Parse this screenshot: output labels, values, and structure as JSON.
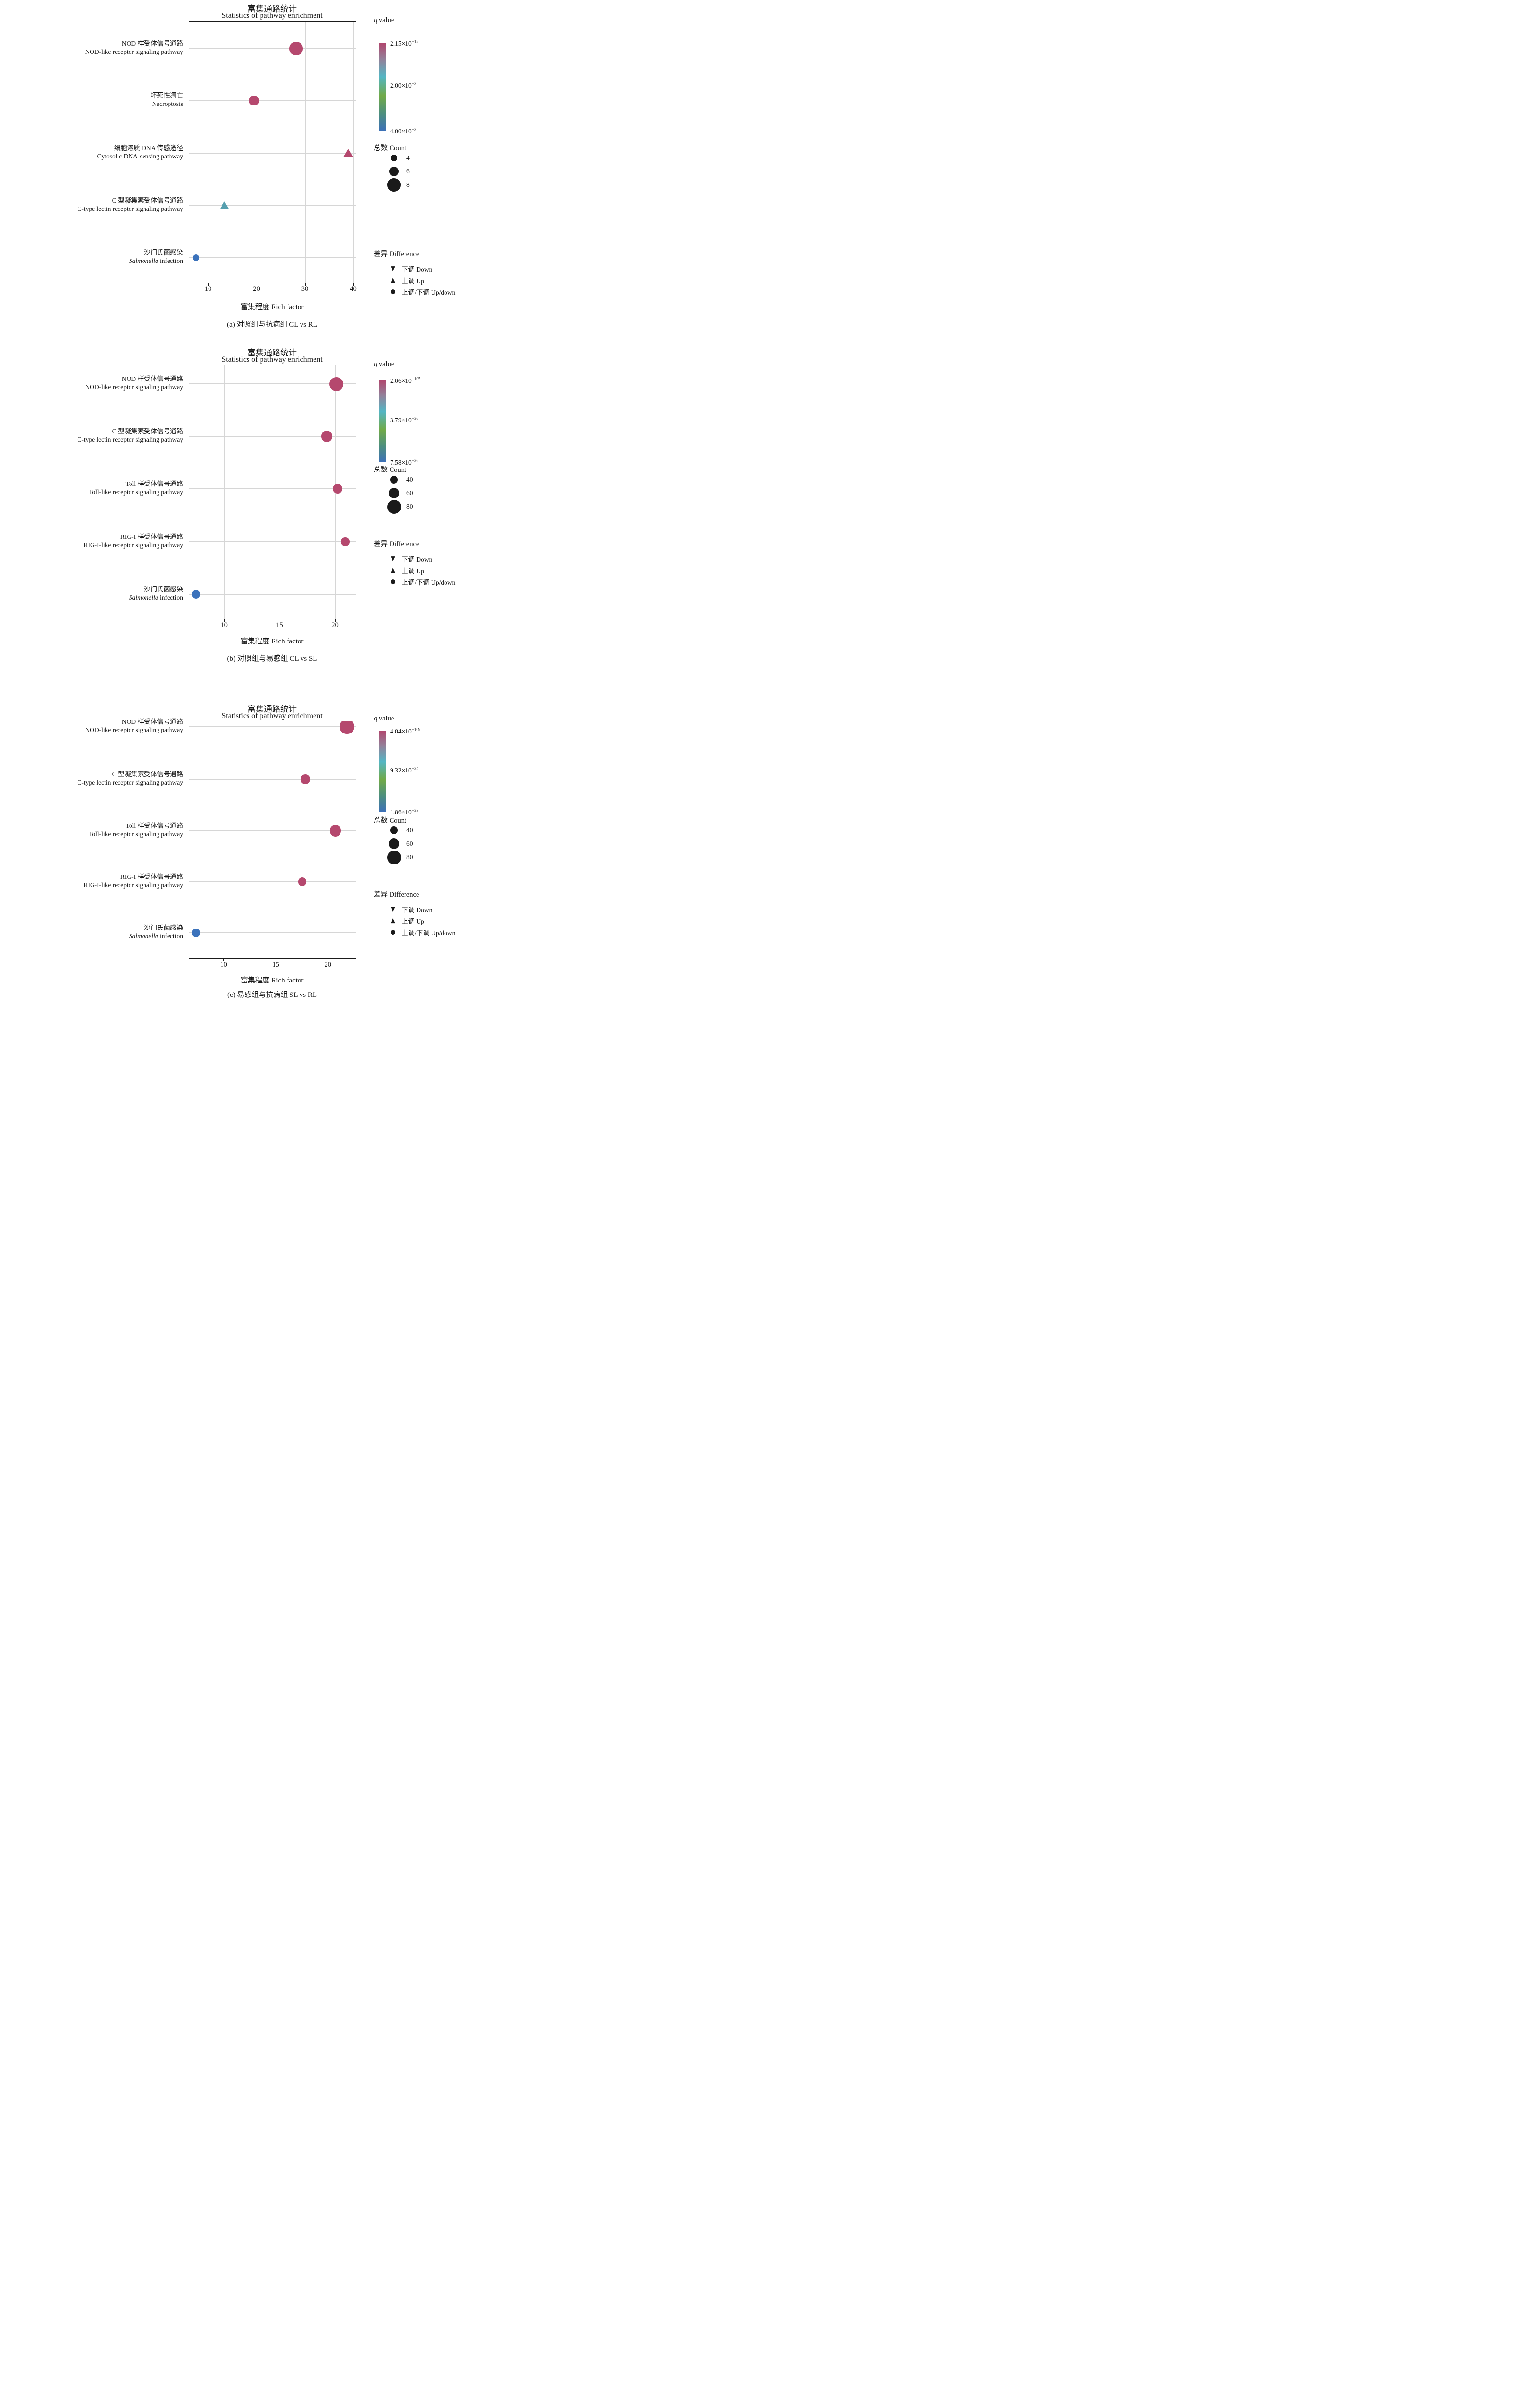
{
  "figure_title_zh": "富集通路统计",
  "figure_title_en": "Statistics of pathway enrichment",
  "colors": {
    "crimson": "#b5486e",
    "teal": "#569fae",
    "blue": "#3b72bb",
    "grid": "#d6d6d6",
    "border": "#1a1a1a",
    "colorbar_stops": [
      "#b0476e 0%",
      "#938099 18%",
      "#54b6c4 38%",
      "#71aa48 60%",
      "#4d8f7e 80%",
      "#3c70b8 100%"
    ]
  },
  "legend": {
    "q_label_i": "q",
    "q_label_rest": " value",
    "count_label": "总数 Count",
    "difference_label": "差异 Difference",
    "difference_items": [
      {
        "glyph": "▼",
        "label": "下调 Down"
      },
      {
        "glyph": "▲",
        "label": "上调 Up"
      },
      {
        "glyph": "●",
        "label": "上调/下调 Up/down"
      }
    ]
  },
  "chart_data": [
    {
      "type": "scatter",
      "title": "富集通路统计",
      "subtitle": "Statistics of pathway enrichment",
      "caption": "(a) 对照组与抗病组 CL vs RL",
      "xlabel": "富集程度 Rich factor",
      "x_ticks": [
        10,
        20,
        30,
        40
      ],
      "x_range": [
        6.0,
        40.45
      ],
      "grid": true,
      "legend_position": "right",
      "q_colorbar": [
        {
          "base": "2.15×10",
          "exp": "−12"
        },
        {
          "base": "2.00×10",
          "exp": "−3"
        },
        {
          "base": "4.00×10",
          "exp": "−3"
        }
      ],
      "count_legend": [
        4,
        6,
        8
      ],
      "rows": [
        {
          "zh": "NOD 样受体信号通路",
          "en": "NOD-like receptor signaling pathway",
          "en_i": "",
          "marker": "circle",
          "color": "crimson",
          "x": 28.1,
          "count": 8
        },
        {
          "zh": "坏死性凋亡",
          "en": "Necroptosis",
          "en_i": "",
          "marker": "circle",
          "color": "crimson",
          "x": 19.4,
          "count": 6
        },
        {
          "zh": "细胞溶质 DNA 传感途径",
          "en": "Cytosolic DNA-sensing pathway",
          "en_i": "",
          "marker": "triangle",
          "color": "crimson",
          "x": 38.9,
          "count": 4
        },
        {
          "zh": "C 型凝集素受体信号通路",
          "en": "C-type lectin receptor signaling pathway",
          "en_i": "",
          "marker": "triangle",
          "color": "teal",
          "x": 13.3,
          "count": 4
        },
        {
          "zh": "沙门氏菌感染",
          "en": " infection",
          "en_i": "Salmonella",
          "marker": "circle",
          "color": "blue",
          "x": 7.4,
          "count": 4
        }
      ]
    },
    {
      "type": "scatter",
      "title": "富集通路统计",
      "subtitle": "Statistics of pathway enrichment",
      "caption": "(b) 对照组与易感组 CL vs SL",
      "xlabel": "富集程度 Rich factor",
      "x_ticks": [
        10,
        15,
        20
      ],
      "x_range": [
        6.8,
        21.85
      ],
      "grid": true,
      "legend_position": "right",
      "q_colorbar": [
        {
          "base": "2.06×10",
          "exp": "−105"
        },
        {
          "base": "3.79×10",
          "exp": "−26"
        },
        {
          "base": "7.58×10",
          "exp": "−26"
        }
      ],
      "count_legend": [
        40,
        60,
        80
      ],
      "rows": [
        {
          "zh": "NOD 样受体信号通路",
          "en": "NOD-like receptor signaling pathway",
          "en_i": "",
          "marker": "circle",
          "color": "crimson",
          "x": 20.1,
          "count": 80
        },
        {
          "zh": "C 型凝集素受体信号通路",
          "en": "C-type lectin receptor signaling pathway",
          "en_i": "",
          "marker": "circle",
          "color": "crimson",
          "x": 19.2,
          "count": 62
        },
        {
          "zh": "Toll 样受体信号通路",
          "en": "Toll-like receptor signaling pathway",
          "en_i": "",
          "marker": "circle",
          "color": "crimson",
          "x": 20.2,
          "count": 55
        },
        {
          "zh": "RIG-I 样受体信号通路",
          "en": "RIG-I-like receptor signaling pathway",
          "en_i": "",
          "marker": "circle",
          "color": "crimson",
          "x": 20.9,
          "count": 45
        },
        {
          "zh": "沙门氏菌感染",
          "en": " infection",
          "en_i": "Salmonella",
          "marker": "circle",
          "color": "blue",
          "x": 7.4,
          "count": 48
        }
      ]
    },
    {
      "type": "scatter",
      "title": "富集通路统计",
      "subtitle": "Statistics of pathway enrichment",
      "caption": "(c) 易感组与抗病组 SL vs RL",
      "xlabel": "富集程度 Rich factor",
      "x_ticks": [
        10,
        15,
        20
      ],
      "x_range": [
        6.65,
        22.65
      ],
      "grid": true,
      "legend_position": "right",
      "q_colorbar": [
        {
          "base": "4.04×10",
          "exp": "−109"
        },
        {
          "base": "9.32×10",
          "exp": "−24"
        },
        {
          "base": "1.86×10",
          "exp": "−23"
        }
      ],
      "count_legend": [
        40,
        60,
        80
      ],
      "rows": [
        {
          "zh": "NOD 样受体信号通路",
          "en": "NOD-like receptor signaling pathway",
          "en_i": "",
          "marker": "circle",
          "color": "crimson",
          "x": 21.8,
          "count": 85
        },
        {
          "zh": "C 型凝集素受体信号通路",
          "en": "C-type lectin receptor signaling pathway",
          "en_i": "",
          "marker": "circle",
          "color": "crimson",
          "x": 17.8,
          "count": 52
        },
        {
          "zh": "Toll 样受体信号通路",
          "en": "Toll-like receptor signaling pathway",
          "en_i": "",
          "marker": "circle",
          "color": "crimson",
          "x": 20.7,
          "count": 62
        },
        {
          "zh": "RIG-I 样受体信号通路",
          "en": "RIG-I-like receptor signaling pathway",
          "en_i": "",
          "marker": "circle",
          "color": "crimson",
          "x": 17.5,
          "count": 44
        },
        {
          "zh": "沙门氏菌感染",
          "en": " infection",
          "en_i": "Salmonella",
          "marker": "circle",
          "color": "blue",
          "x": 7.3,
          "count": 48
        }
      ]
    }
  ]
}
